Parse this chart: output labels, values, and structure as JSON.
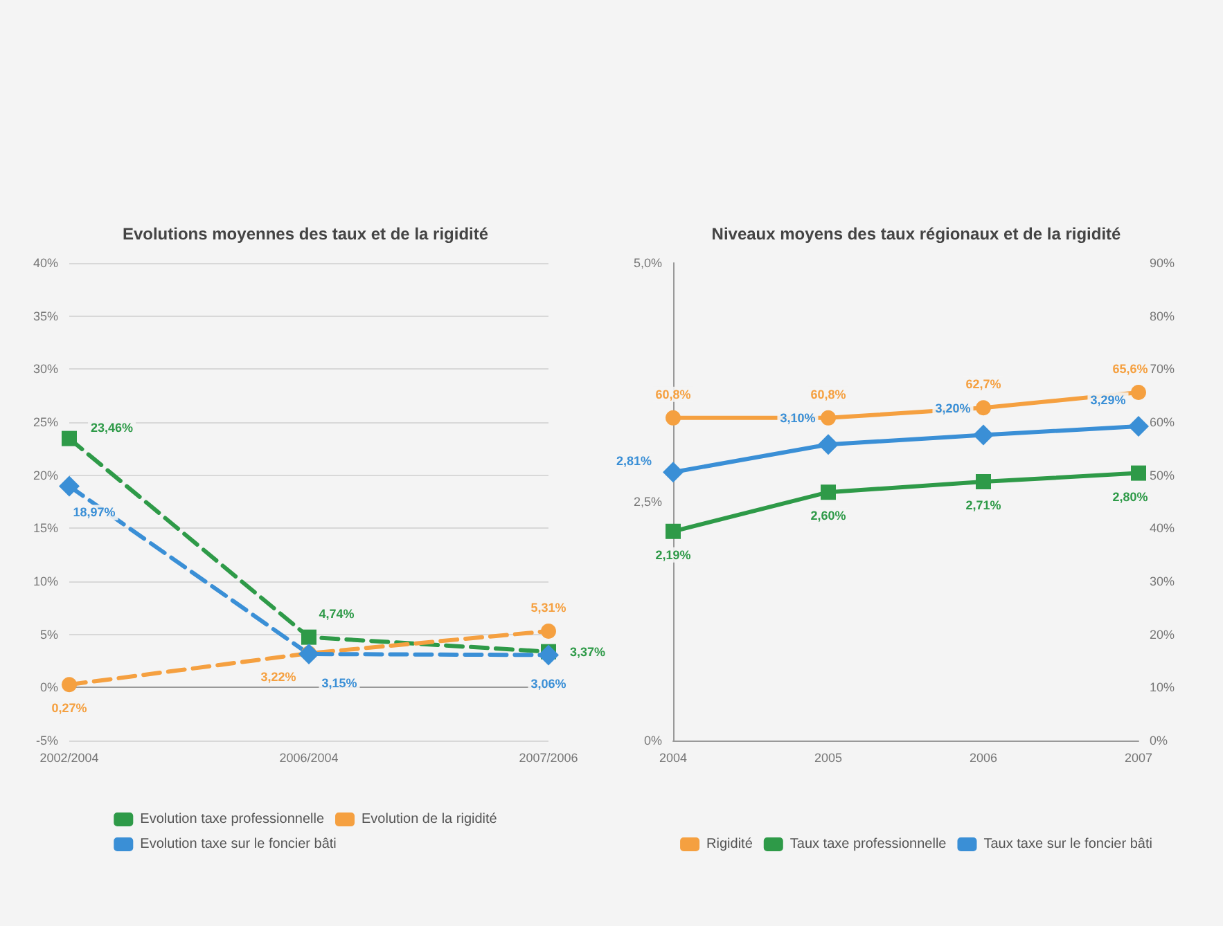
{
  "chart_data": [
    {
      "type": "line",
      "title": "Evolutions moyennes des taux et de la rigidité",
      "categories": [
        "2002/2004",
        "2006/2004",
        "2007/2006"
      ],
      "series": [
        {
          "name": "Evolution taxe professionnelle",
          "color": "#2e9a48",
          "marker": "square",
          "values": [
            23.46,
            4.74,
            3.37
          ],
          "value_labels": [
            "23,46%",
            "4,74%",
            "3,37%"
          ]
        },
        {
          "name": "Evolution de la rigidité",
          "color": "#f5a040",
          "marker": "circle",
          "values": [
            0.27,
            3.22,
            5.31
          ],
          "value_labels": [
            "0,27%",
            "3,22%",
            "5,31%"
          ]
        },
        {
          "name": "Evolution taxe sur le foncier bâti",
          "color": "#3a8fd6",
          "marker": "diamond",
          "values": [
            18.97,
            3.15,
            3.06
          ],
          "value_labels": [
            "18,97%",
            "3,15%",
            "3,06%"
          ]
        }
      ],
      "line_style": "dashed",
      "ylim": [
        -5,
        40
      ],
      "yticks": [
        {
          "value": -5,
          "label": "-5%"
        },
        {
          "value": 0,
          "label": "0%"
        },
        {
          "value": 5,
          "label": "5%"
        },
        {
          "value": 10,
          "label": "10%"
        },
        {
          "value": 15,
          "label": "15%"
        },
        {
          "value": 20,
          "label": "20%"
        },
        {
          "value": 25,
          "label": "25%"
        },
        {
          "value": 30,
          "label": "30%"
        },
        {
          "value": 35,
          "label": "35%"
        },
        {
          "value": 40,
          "label": "40%"
        }
      ],
      "grid": "y",
      "legend": "bottom"
    },
    {
      "type": "line",
      "title": "Niveaux moyens des taux régionaux et de la rigidité",
      "categories": [
        "2004",
        "2005",
        "2006",
        "2007"
      ],
      "series": [
        {
          "name": "Rigidité",
          "color": "#f5a040",
          "marker": "circle",
          "axis": "y2",
          "values": [
            60.8,
            60.8,
            62.7,
            65.6
          ],
          "value_labels": [
            "60,8%",
            "60,8%",
            "62,7%",
            "65,6%"
          ]
        },
        {
          "name": "Taux taxe professionnelle",
          "color": "#2e9a48",
          "marker": "square",
          "values": [
            2.19,
            2.6,
            2.71,
            2.8
          ],
          "value_labels": [
            "2,19%",
            "2,60%",
            "2,71%",
            "2,80%"
          ]
        },
        {
          "name": "Taux taxe sur le foncier bâti",
          "color": "#3a8fd6",
          "marker": "diamond",
          "values": [
            2.81,
            3.1,
            3.2,
            3.29
          ],
          "value_labels": [
            "2,81%",
            "3,10%",
            "3,20%",
            "3,29%"
          ]
        }
      ],
      "line_style": "solid",
      "ylim": [
        0,
        5
      ],
      "yticks": [
        {
          "value": 0,
          "label": "0%"
        },
        {
          "value": 2.5,
          "label": "2,5%"
        },
        {
          "value": 5,
          "label": "5,0%"
        }
      ],
      "y2lim": [
        0,
        90
      ],
      "y2ticks": [
        {
          "value": 0,
          "label": "0%"
        },
        {
          "value": 10,
          "label": "10%"
        },
        {
          "value": 20,
          "label": "20%"
        },
        {
          "value": 30,
          "label": "30%"
        },
        {
          "value": 40,
          "label": "40%"
        },
        {
          "value": 50,
          "label": "50%"
        },
        {
          "value": 60,
          "label": "60%"
        },
        {
          "value": 70,
          "label": "70%"
        },
        {
          "value": 80,
          "label": "80%"
        },
        {
          "value": 90,
          "label": "90%"
        }
      ],
      "grid": false,
      "legend": "bottom"
    }
  ]
}
